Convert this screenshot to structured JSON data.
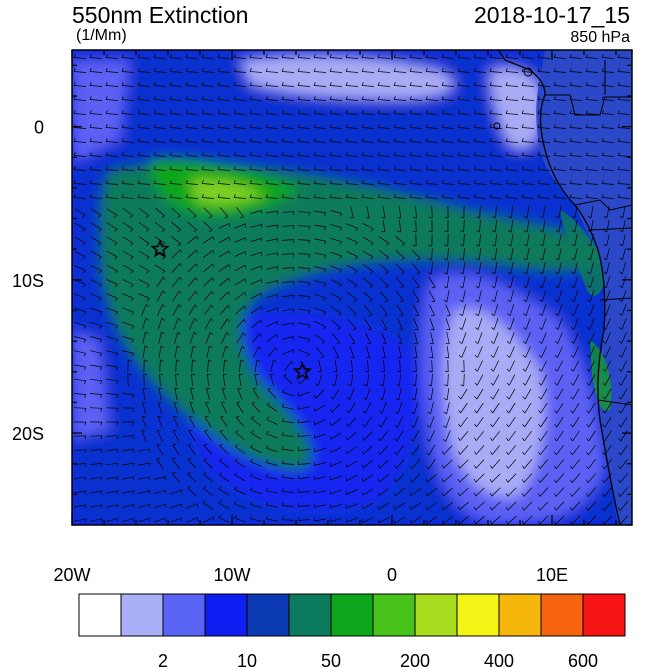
{
  "header": {
    "title": "550nm Extinction",
    "units": "(1/Mm)",
    "datetime": "2018-10-17_15",
    "level": "850 hPa"
  },
  "map": {
    "x_ticks": [
      {
        "label": "20W",
        "lon": -20
      },
      {
        "label": "10W",
        "lon": -10
      },
      {
        "label": "0",
        "lon": 0
      },
      {
        "label": "10E",
        "lon": 10
      }
    ],
    "y_ticks": [
      {
        "label": "0",
        "lat": 0
      },
      {
        "label": "10S",
        "lat": -10
      },
      {
        "label": "20S",
        "lat": -20
      }
    ],
    "lon_range": [
      -20,
      15
    ],
    "lat_range": [
      -26,
      5
    ],
    "markers": [
      {
        "name": "star-marker",
        "lon": -14.5,
        "lat": -8
      },
      {
        "name": "star-marker",
        "lon": -5.6,
        "lat": -16
      }
    ],
    "colors": {
      "ocean_dark": "#0a39b4",
      "ocean_blue": "#1426f0",
      "light_blue": "#a9abf5",
      "mid_blue": "#5b60f3",
      "teal": "#0e7a5c",
      "green": "#0fa61a",
      "lime": "#7cd024",
      "land_line": "#000000"
    }
  },
  "colorbar": {
    "colors": [
      "#ffffff",
      "#aab0f7",
      "#5a64f6",
      "#0f1ef2",
      "#0b3ab2",
      "#0c7a5c",
      "#0ca61c",
      "#48c31c",
      "#a8dc1e",
      "#f4f416",
      "#f7b60c",
      "#f76410",
      "#f71414"
    ],
    "labels": [
      {
        "text": "2",
        "index": 1
      },
      {
        "text": "10",
        "index": 3
      },
      {
        "text": "50",
        "index": 5
      },
      {
        "text": "200",
        "index": 7
      },
      {
        "text": "400",
        "index": 9
      },
      {
        "text": "600",
        "index": 11
      }
    ]
  }
}
